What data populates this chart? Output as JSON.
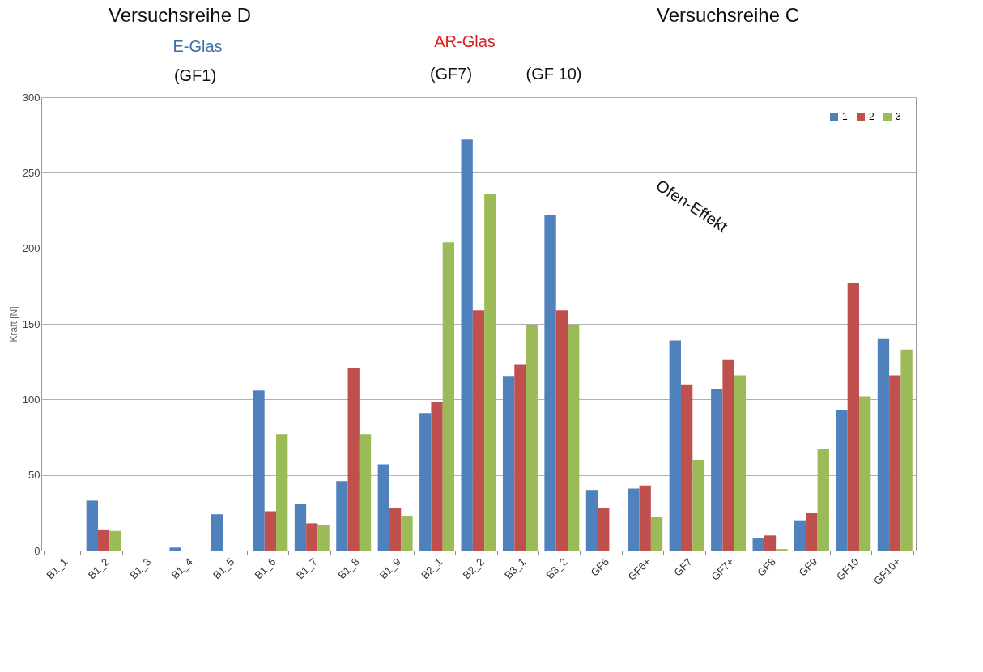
{
  "chart_data": {
    "type": "bar",
    "ylabel": "Kraft [N]",
    "categories": [
      "B1_1",
      "B1_2",
      "B1_3",
      "B1_4",
      "B1_5",
      "B1_6",
      "B1_7",
      "B1_8",
      "B1_9",
      "B2_1",
      "B2_2",
      "B3_1",
      "B3_2",
      "GF6",
      "GF6+",
      "GF7",
      "GF7+",
      "GF8",
      "GF9",
      "GF10",
      "GF10+"
    ],
    "series": [
      {
        "name": "1",
        "color": "#4f81bd",
        "values": [
          0,
          33,
          0,
          2,
          24,
          106,
          31,
          46,
          57,
          91,
          272,
          115,
          222,
          40,
          41,
          139,
          107,
          8,
          20,
          93,
          140
        ]
      },
      {
        "name": "2",
        "color": "#c0504d",
        "values": [
          0,
          14,
          0,
          0,
          0,
          26,
          18,
          121,
          28,
          98,
          159,
          123,
          159,
          28,
          43,
          110,
          126,
          10,
          25,
          177,
          116
        ]
      },
      {
        "name": "3",
        "color": "#9bbb59",
        "values": [
          0,
          13,
          0,
          0,
          0,
          77,
          17,
          77,
          23,
          204,
          236,
          149,
          149,
          0,
          22,
          60,
          116,
          1,
          67,
          102,
          133
        ]
      }
    ],
    "ylim": [
      0,
      300
    ],
    "yticks": [
      0,
      50,
      100,
      150,
      200,
      250,
      300
    ],
    "grid": "y",
    "legend": "top right",
    "annotations": [
      "Versuchsreihe D",
      "E-Glas",
      "(GF1)",
      "AR-Glas",
      "(GF7)",
      "(GF 10)",
      "Versuchsreihe C",
      "Ofen-Effekt"
    ]
  }
}
